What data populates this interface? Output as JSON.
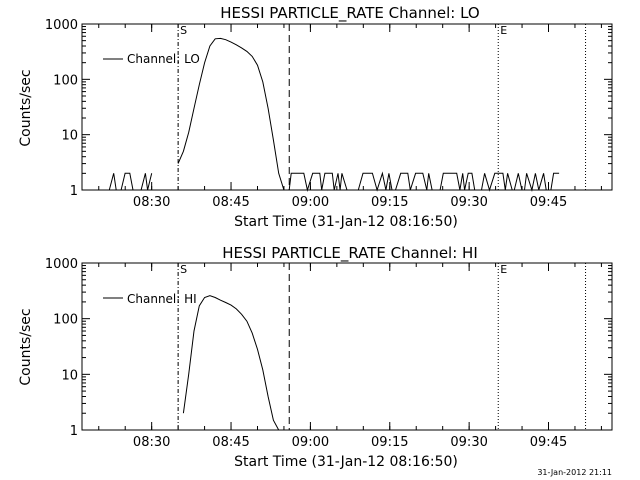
{
  "chart_data": [
    {
      "type": "line",
      "title": "HESSI PARTICLE_RATE Channel: LO",
      "xlabel": "Start Time (31-Jan-12 08:16:50)",
      "ylabel": "Counts/sec",
      "yscale": "log",
      "ylim": [
        1,
        1000
      ],
      "xlim": [
        "08:16:50",
        "09:57:00"
      ],
      "x_ticks": [
        "08:30",
        "08:45",
        "09:00",
        "09:15",
        "09:30",
        "09:45"
      ],
      "y_ticks": [
        "1",
        "10",
        "100",
        "1000"
      ],
      "legend": {
        "label": "Channel: LO",
        "position": "top-left"
      },
      "markers": [
        {
          "label": "S",
          "time": "08:35:00",
          "style": "dash-dot"
        },
        {
          "label": "",
          "time": "08:56:00",
          "style": "dashed"
        },
        {
          "label": "E",
          "time": "09:35:30",
          "style": "dotted"
        },
        {
          "label": "",
          "time": "09:52:00",
          "style": "dotted"
        }
      ],
      "series": [
        {
          "name": "Channel: LO",
          "points": [
            [
              "08:35:00",
              3
            ],
            [
              "08:36:00",
              5
            ],
            [
              "08:37:00",
              11
            ],
            [
              "08:38:00",
              30
            ],
            [
              "08:39:00",
              80
            ],
            [
              "08:40:00",
              200
            ],
            [
              "08:41:00",
              400
            ],
            [
              "08:42:00",
              540
            ],
            [
              "08:43:00",
              550
            ],
            [
              "08:44:00",
              520
            ],
            [
              "08:45:00",
              470
            ],
            [
              "08:46:00",
              420
            ],
            [
              "08:47:00",
              370
            ],
            [
              "08:48:00",
              320
            ],
            [
              "08:49:00",
              260
            ],
            [
              "08:50:00",
              180
            ],
            [
              "08:51:00",
              90
            ],
            [
              "08:52:00",
              30
            ],
            [
              "08:53:00",
              8
            ],
            [
              "08:54:00",
              2
            ],
            [
              "08:55:00",
              1
            ]
          ],
          "noise_windows": [
            [
              "08:22:00",
              "08:30:00"
            ],
            [
              "08:56:00",
              "09:47:00"
            ]
          ]
        }
      ]
    },
    {
      "type": "line",
      "title": "HESSI PARTICLE_RATE Channel: HI",
      "xlabel": "Start Time (31-Jan-12 08:16:50)",
      "ylabel": "Counts/sec",
      "yscale": "log",
      "ylim": [
        1,
        1000
      ],
      "xlim": [
        "08:16:50",
        "09:57:00"
      ],
      "x_ticks": [
        "08:30",
        "08:45",
        "09:00",
        "09:15",
        "09:30",
        "09:45"
      ],
      "y_ticks": [
        "1",
        "10",
        "100",
        "1000"
      ],
      "legend": {
        "label": "Channel: HI",
        "position": "top-left"
      },
      "markers": [
        {
          "label": "S",
          "time": "08:35:00",
          "style": "dash-dot"
        },
        {
          "label": "",
          "time": "08:56:00",
          "style": "dashed"
        },
        {
          "label": "E",
          "time": "09:35:30",
          "style": "dotted"
        },
        {
          "label": "",
          "time": "09:52:00",
          "style": "dotted"
        }
      ],
      "series": [
        {
          "name": "Channel: HI",
          "points": [
            [
              "08:36:00",
              2
            ],
            [
              "08:37:00",
              10
            ],
            [
              "08:38:00",
              60
            ],
            [
              "08:39:00",
              170
            ],
            [
              "08:40:00",
              240
            ],
            [
              "08:41:00",
              260
            ],
            [
              "08:42:00",
              240
            ],
            [
              "08:43:00",
              215
            ],
            [
              "08:44:00",
              195
            ],
            [
              "08:45:00",
              175
            ],
            [
              "08:46:00",
              150
            ],
            [
              "08:47:00",
              120
            ],
            [
              "08:48:00",
              90
            ],
            [
              "08:49:00",
              55
            ],
            [
              "08:50:00",
              28
            ],
            [
              "08:51:00",
              12
            ],
            [
              "08:52:00",
              4
            ],
            [
              "08:53:00",
              1.5
            ],
            [
              "08:54:00",
              1
            ]
          ],
          "noise_windows": []
        }
      ]
    }
  ],
  "footer": {
    "timestamp": "31-Jan-2012 21:11"
  }
}
